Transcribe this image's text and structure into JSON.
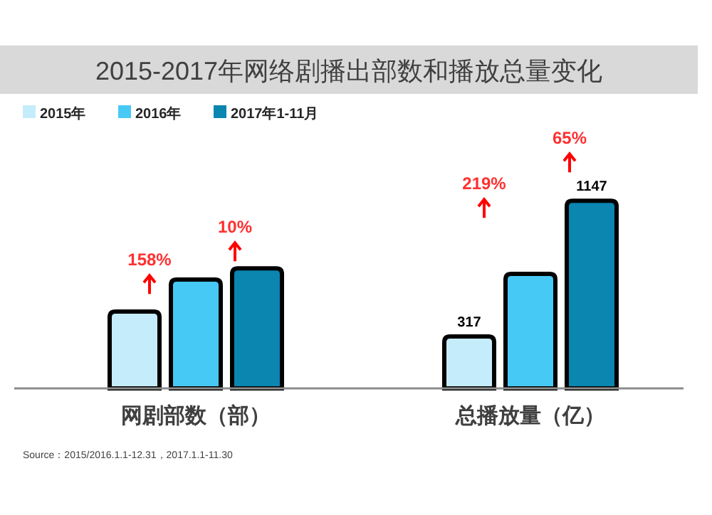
{
  "chart_data": {
    "type": "bar",
    "title": "2015-2017年网络剧播出部数和播放总量变化",
    "categories": [
      "网剧部数（部）",
      "总播放量（亿）"
    ],
    "series": [
      {
        "name": "2015年",
        "color": "#c5ecfa",
        "values": [
          470,
          317
        ],
        "value_labels": [
          null,
          "317"
        ]
      },
      {
        "name": "2016年",
        "color": "#47c9f5",
        "values": [
          665,
          700
        ],
        "value_labels": [
          null,
          null
        ]
      },
      {
        "name": "2017年1-11月",
        "color": "#0a86b0",
        "values": [
          734,
          1147
        ],
        "value_labels": [
          null,
          "1147"
        ]
      }
    ],
    "annotations": [
      "158%",
      "10%",
      "219%",
      "65%",
      "Source：2015/2016.1.1-12.31，2017.1.1-11.30"
    ],
    "legend": "top left"
  }
}
